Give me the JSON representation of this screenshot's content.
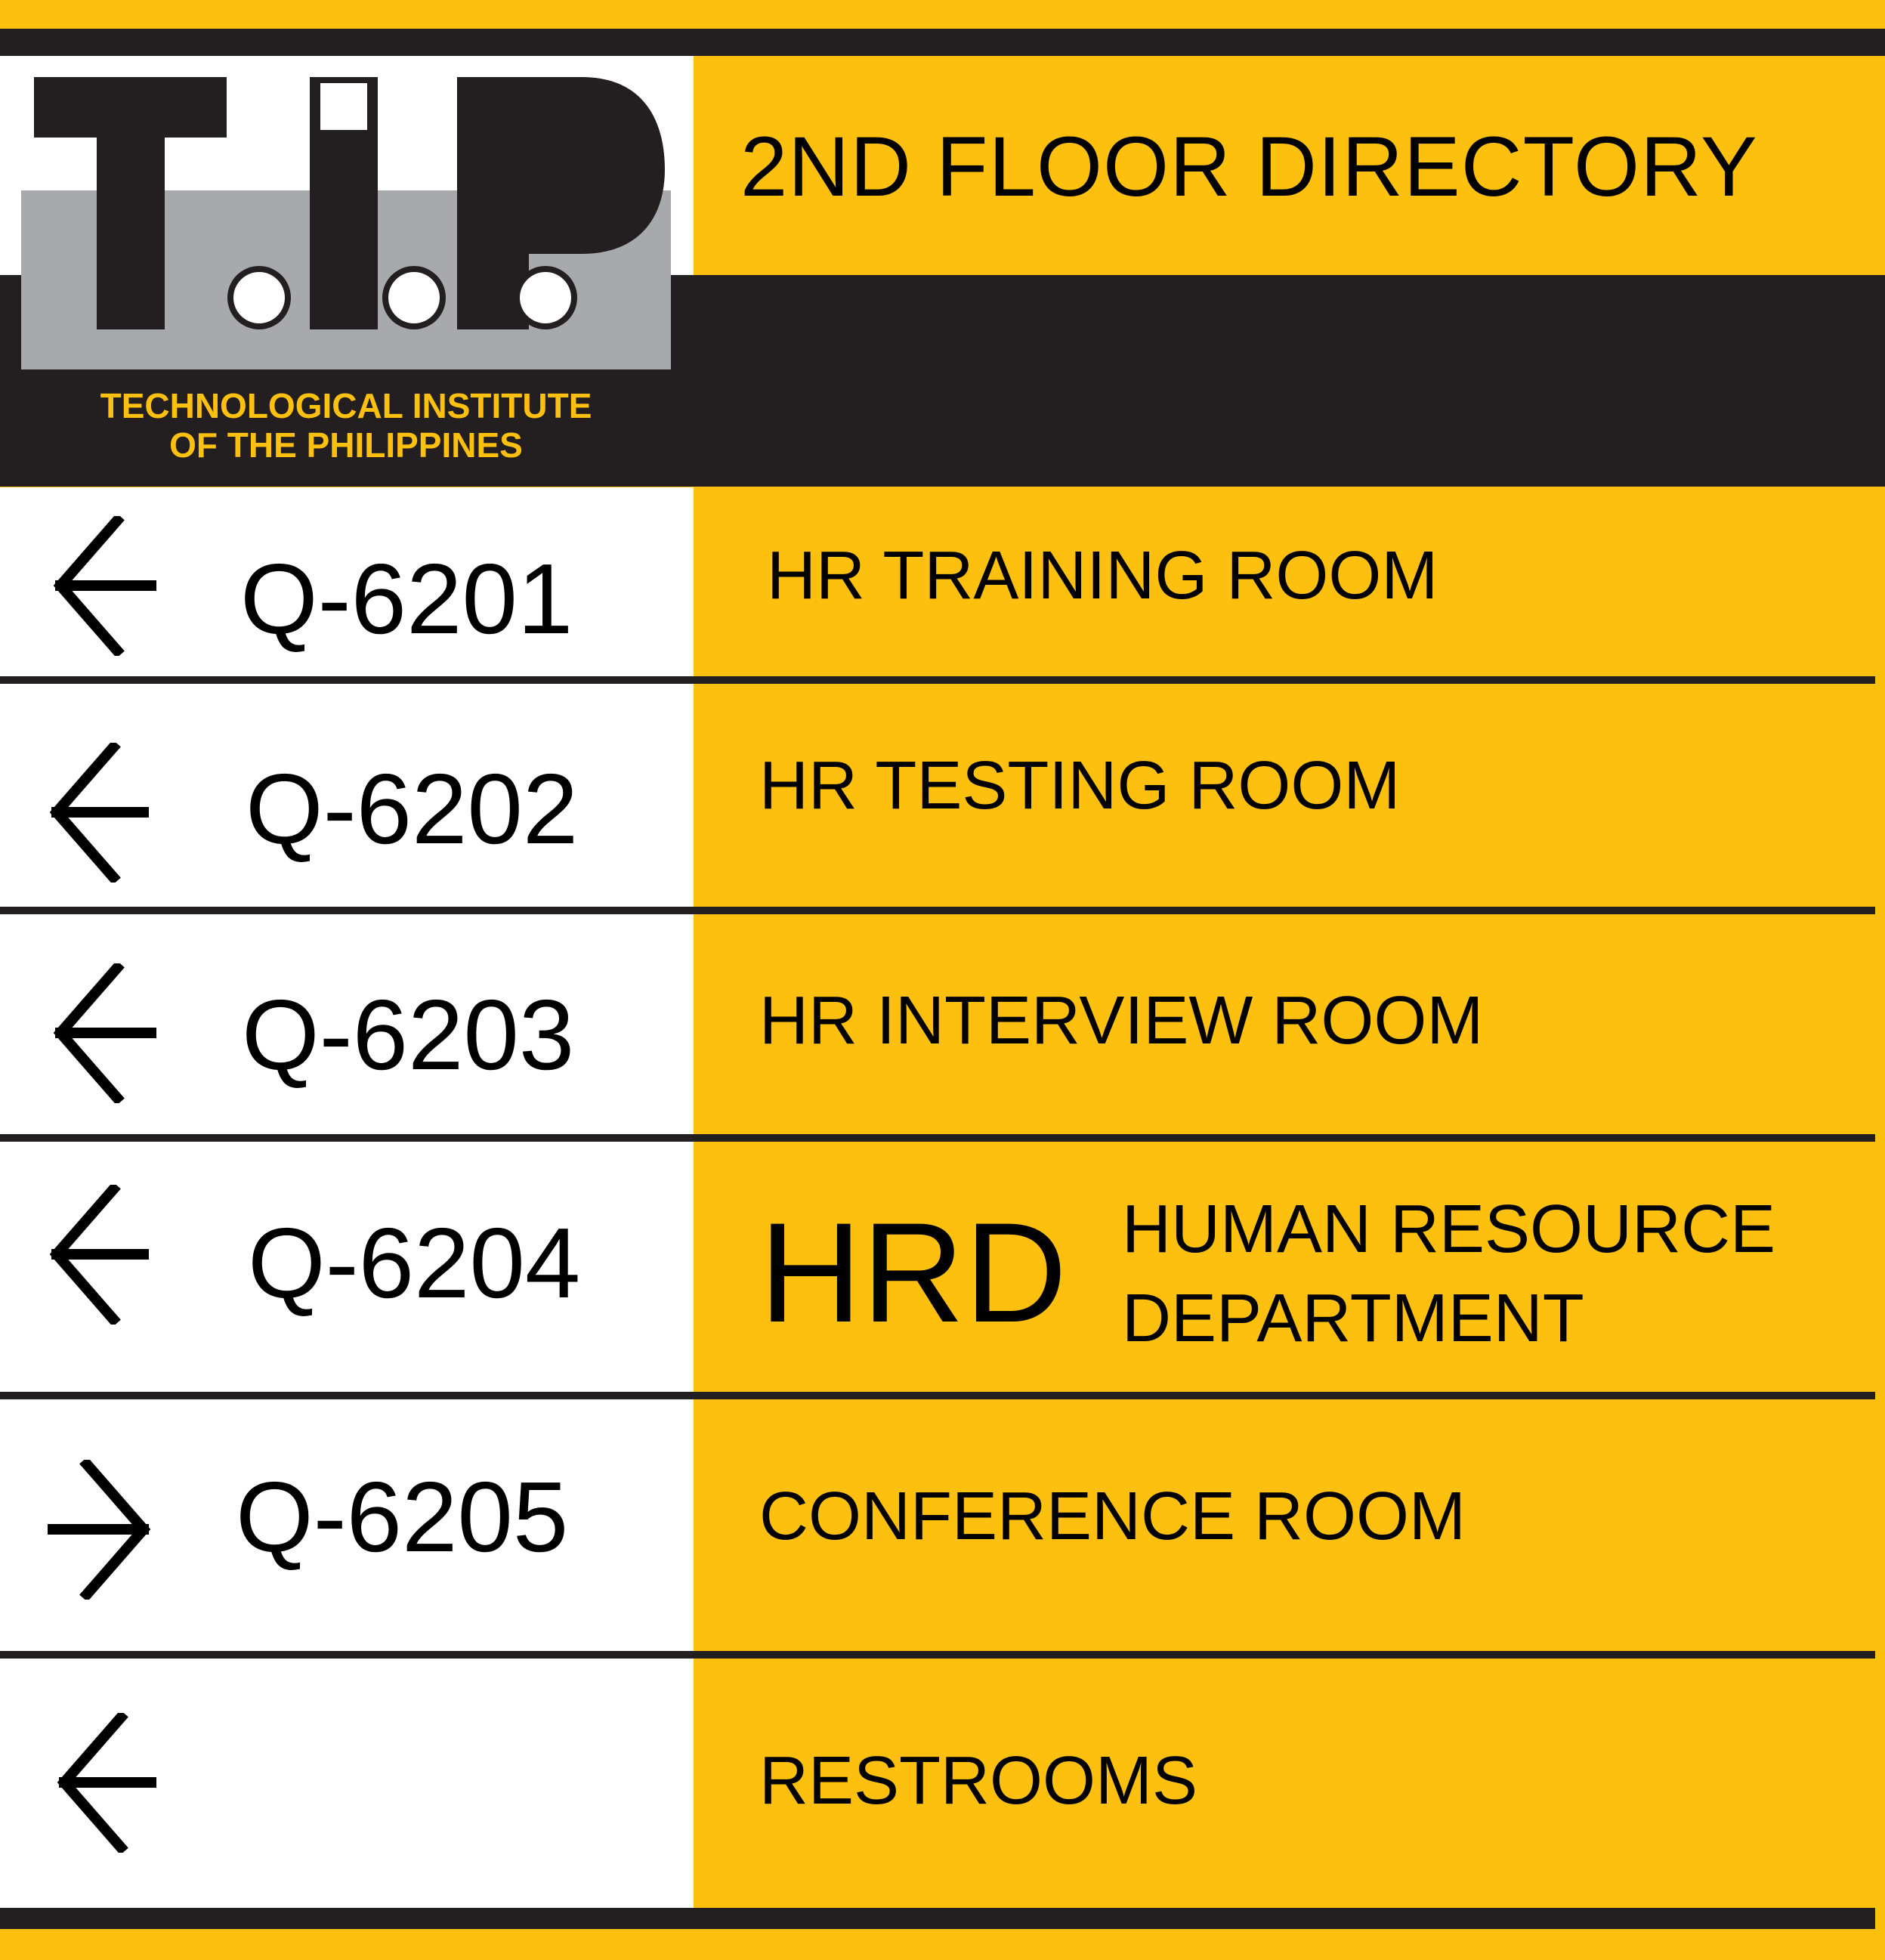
{
  "header": {
    "title": "2ND FLOOR DIRECTORY",
    "logo": {
      "mark": "T.I.P.",
      "name_line1": "TECHNOLOGICAL INSTITUTE",
      "name_line2": "OF THE PHILIPPINES"
    }
  },
  "rows": [
    {
      "code": "Q-6201",
      "label": "HR TRAINING ROOM",
      "arrow": "left-arrow-icon"
    },
    {
      "code": "Q-6202",
      "label": "HR TESTING ROOM",
      "arrow": "left-arrow-icon"
    },
    {
      "code": "Q-6203",
      "label": "HR INTERVIEW ROOM",
      "arrow": "left-arrow-icon"
    },
    {
      "code": "Q-6204",
      "abbr": "HRD",
      "label_line1": "HUMAN RESOURCE",
      "label_line2": "DEPARTMENT",
      "arrow": "left-arrow-icon"
    },
    {
      "code": "Q-6205",
      "label": "CONFERENCE ROOM",
      "arrow": "right-arrow-icon"
    },
    {
      "code": "",
      "label": "RESTROOMS",
      "arrow": "left-arrow-icon"
    }
  ],
  "colors": {
    "accent_yellow": "#FEC00F",
    "dark": "#231F20",
    "white": "#FFFFFF",
    "logo_gray": "#A7A9AC"
  }
}
